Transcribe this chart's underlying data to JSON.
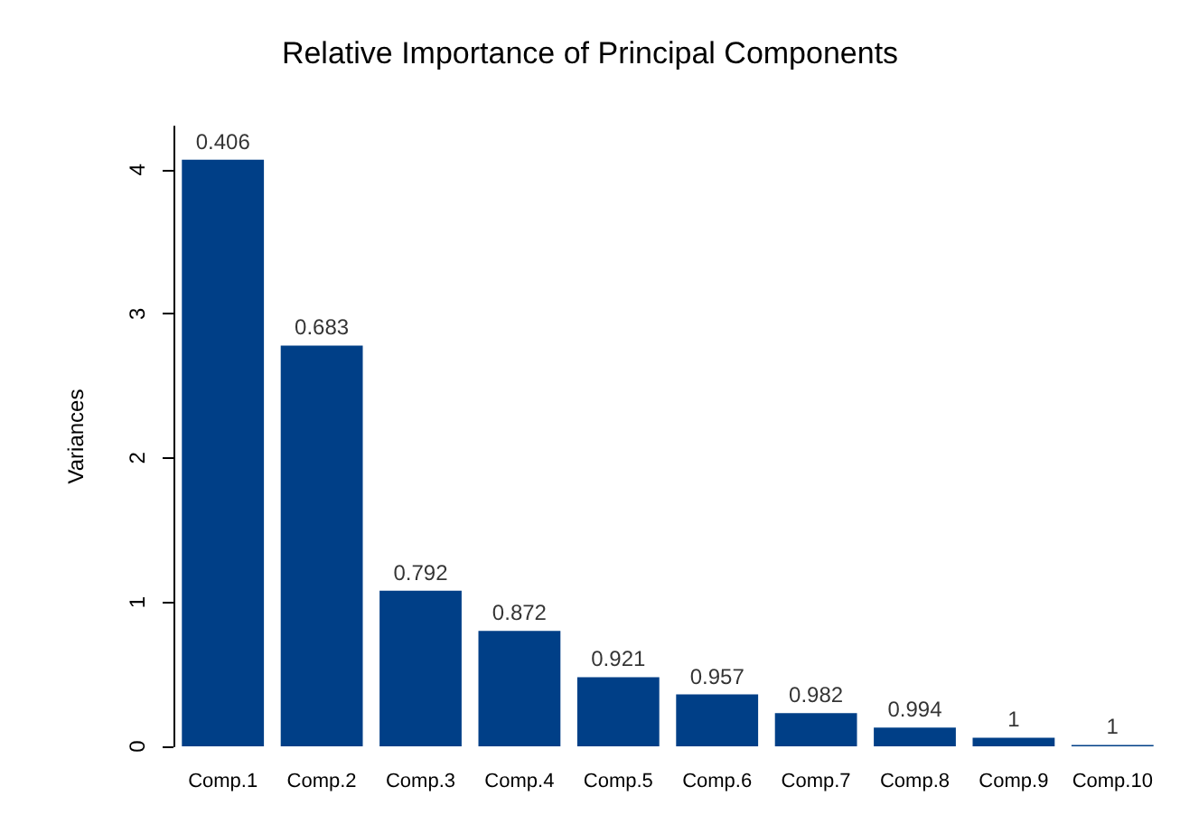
{
  "chart_data": {
    "type": "bar",
    "title": "Relative Importance of Principal Components",
    "ylabel": "Variances",
    "categories": [
      "Comp.1",
      "Comp.2",
      "Comp.3",
      "Comp.4",
      "Comp.5",
      "Comp.6",
      "Comp.7",
      "Comp.8",
      "Comp.9",
      "Comp.10"
    ],
    "values": [
      4.07,
      2.78,
      1.08,
      0.8,
      0.48,
      0.36,
      0.23,
      0.13,
      0.06,
      0.01
    ],
    "annotations": [
      {
        "text": "0.406",
        "x": "Comp.1",
        "y": 4.07
      },
      {
        "text": "0.683",
        "x": "Comp.2",
        "y": 2.78
      },
      {
        "text": "0.792",
        "x": "Comp.3",
        "y": 1.08
      },
      {
        "text": "0.872",
        "x": "Comp.4",
        "y": 0.8
      },
      {
        "text": "0.921",
        "x": "Comp.5",
        "y": 0.48
      },
      {
        "text": "0.957",
        "x": "Comp.6",
        "y": 0.36
      },
      {
        "text": "0.982",
        "x": "Comp.7",
        "y": 0.23
      },
      {
        "text": "0.994",
        "x": "Comp.8",
        "y": 0.13
      },
      {
        "text": "1",
        "x": "Comp.9",
        "y": 0.06
      },
      {
        "text": "1",
        "x": "Comp.10",
        "y": 0.01
      }
    ],
    "color": "#003f87",
    "ylim": [
      0,
      4.3
    ],
    "yticks": [
      0,
      1,
      2,
      3,
      4
    ],
    "grid": false
  }
}
